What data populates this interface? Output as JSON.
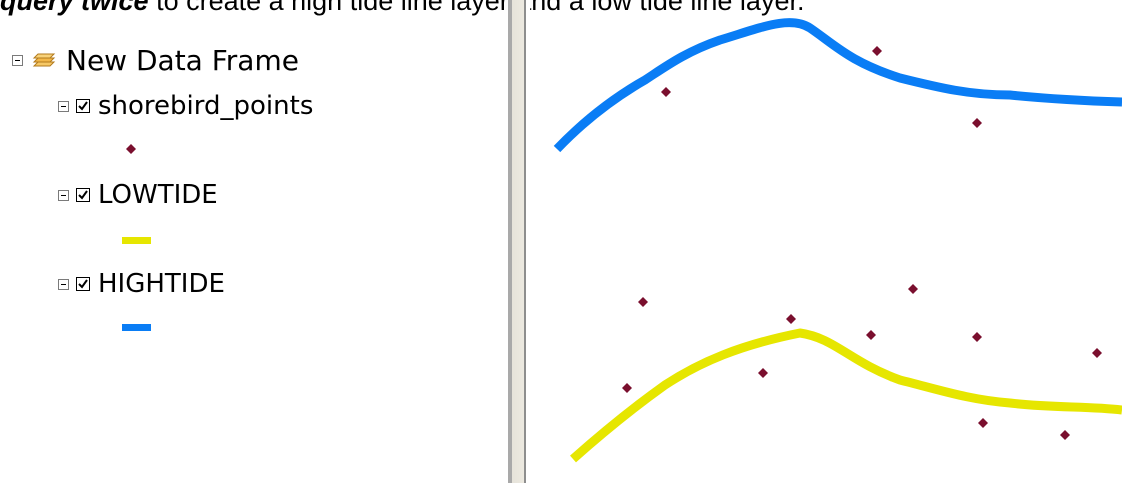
{
  "caption": {
    "bold_part": "query twice",
    "rest": " to create a high tide line layer and a low tide line layer."
  },
  "toc": {
    "data_frame": {
      "label": "New Data Frame",
      "icon": "layers-icon"
    },
    "layers": [
      {
        "label": "shorebird_points",
        "checked": true,
        "symbol": "point",
        "color": "#7a0f2e"
      },
      {
        "label": "LOWTIDE",
        "checked": true,
        "symbol": "line",
        "color": "#e6e600"
      },
      {
        "label": "HIGHTIDE",
        "checked": true,
        "symbol": "line",
        "color": "#0a7df5"
      }
    ]
  },
  "colors": {
    "hightide": "#0a7df5",
    "lowtide": "#e6e600",
    "points": "#7a0f2e"
  }
}
